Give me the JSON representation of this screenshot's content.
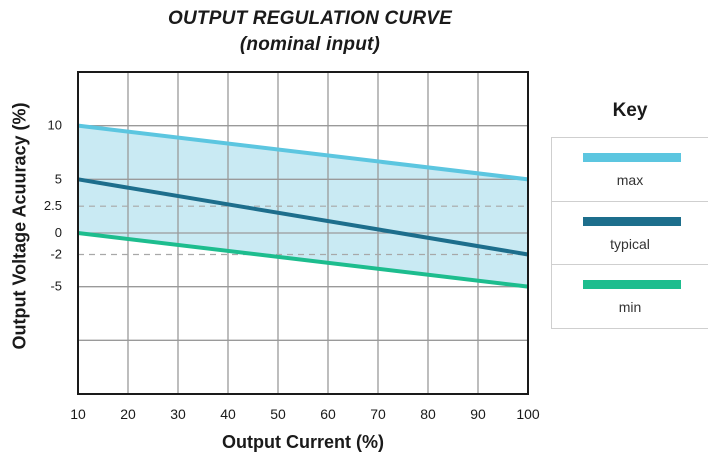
{
  "title": "OUTPUT REGULATION CURVE",
  "subtitle": "(nominal input)",
  "key_title": "Key",
  "chart_data": {
    "type": "line",
    "xlabel": "Output Current (%)",
    "ylabel": "Output Voltage Acuuracy (%)",
    "xlim": [
      10,
      100
    ],
    "ylim": [
      -15,
      15
    ],
    "x_ticks": [
      10,
      20,
      30,
      40,
      50,
      60,
      70,
      80,
      90,
      100
    ],
    "y_ticks": [
      {
        "value": 10,
        "label": "10"
      },
      {
        "value": 5,
        "label": "5"
      },
      {
        "value": 2.5,
        "label": "2.5"
      },
      {
        "value": 0,
        "label": "0"
      },
      {
        "value": -2,
        "label": "-2"
      },
      {
        "value": -5,
        "label": "-5"
      }
    ],
    "grid": true,
    "reference_lines": [
      2.5,
      -2
    ],
    "shaded_band": [
      "max",
      "min"
    ],
    "band_color": "#c9eaf3",
    "legend_position": "right",
    "series": [
      {
        "name": "max",
        "color": "#5cc6e0",
        "x": [
          10,
          100
        ],
        "y": [
          10,
          5
        ]
      },
      {
        "name": "typical",
        "color": "#1d6e8c",
        "x": [
          10,
          100
        ],
        "y": [
          5,
          -2
        ]
      },
      {
        "name": "min",
        "color": "#1dbd8e",
        "x": [
          10,
          100
        ],
        "y": [
          0,
          -5
        ]
      }
    ]
  }
}
